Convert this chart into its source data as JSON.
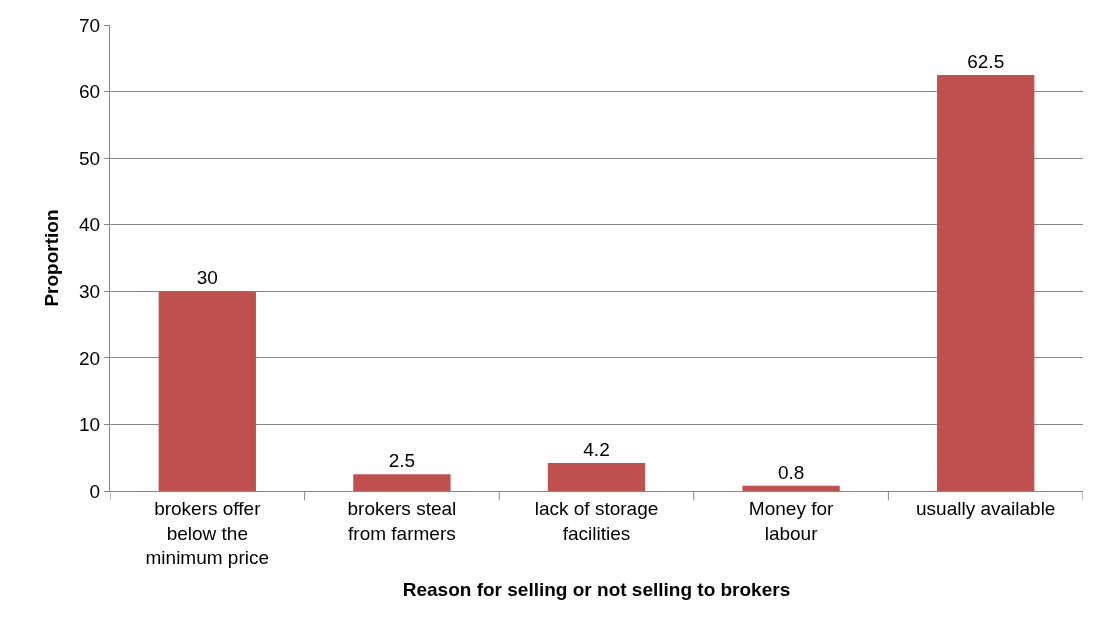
{
  "chart_data": {
    "type": "bar",
    "xlabel": "Reason for selling or not selling to brokers",
    "ylabel": "Proportion",
    "categories": [
      "brokers offer\nbelow the\nminimum price",
      "brokers steal\nfrom farmers",
      "lack of storage\nfacilities",
      "Money for\nlabour",
      "usually available"
    ],
    "values": [
      30,
      2.5,
      4.2,
      0.8,
      62.5
    ],
    "color": "#c0504d",
    "ylim": [
      0,
      70
    ],
    "yticks": [
      0,
      10,
      20,
      30,
      40,
      50,
      60,
      70
    ],
    "grid": "y",
    "data_labels": true
  }
}
